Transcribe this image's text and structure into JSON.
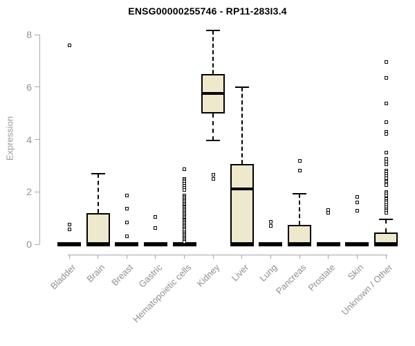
{
  "chart_data": {
    "type": "boxplot",
    "title": "ENSG00000255746 - RP11-283I3.4",
    "xlabel": "",
    "ylabel": "Expression",
    "ylim": [
      0,
      8
    ],
    "yticks": [
      0,
      2,
      4,
      6,
      8
    ],
    "grid": false,
    "legend": "none",
    "categories": [
      "Bladder",
      "Brain",
      "Breast",
      "Gastric",
      "Hematopoietic cells",
      "Kidney",
      "Liver",
      "Lung",
      "Pancreas",
      "Prostate",
      "Skin",
      "Unknown / Other"
    ],
    "boxes": [
      {
        "category": "Bladder",
        "whisker_low": 0,
        "q1": 0,
        "median": 0,
        "q3": 0,
        "whisker_high": 0,
        "outliers": [
          7.6,
          0.75,
          0.58
        ]
      },
      {
        "category": "Brain",
        "whisker_low": 0,
        "q1": 0,
        "median": 0.02,
        "q3": 1.2,
        "whisker_high": 2.7,
        "outliers": []
      },
      {
        "category": "Breast",
        "whisker_low": 0,
        "q1": 0,
        "median": 0,
        "q3": 0,
        "whisker_high": 0,
        "outliers": [
          1.85,
          1.37,
          0.84,
          0.3
        ]
      },
      {
        "category": "Gastric",
        "whisker_low": 0,
        "q1": 0,
        "median": 0,
        "q3": 0,
        "whisker_high": 0,
        "outliers": [
          1.05,
          0.63
        ]
      },
      {
        "category": "Hematopoietic cells",
        "whisker_low": 0,
        "q1": 0,
        "median": 0,
        "q3": 0,
        "whisker_high": 0,
        "outliers": [
          2.87,
          2.5,
          2.44,
          2.38,
          2.3,
          2.24,
          2.16,
          2.08,
          1.85,
          1.8,
          1.75,
          1.7,
          1.65,
          1.6,
          1.55,
          1.5,
          1.45,
          1.4,
          1.35,
          1.3,
          1.25,
          1.2,
          1.15,
          1.1,
          1.05,
          1.0,
          0.95,
          0.9,
          0.85,
          0.8,
          0.75,
          0.7,
          0.65,
          0.6,
          0.55,
          0.45,
          0.4,
          0.35,
          0.3,
          0.25,
          0.2,
          0.15,
          0.1
        ]
      },
      {
        "category": "Kidney",
        "whisker_low": 3.95,
        "q1": 5.0,
        "median": 5.75,
        "q3": 6.5,
        "whisker_high": 8.15,
        "outliers": [
          2.65,
          2.5
        ]
      },
      {
        "category": "Liver",
        "whisker_low": 0,
        "q1": 0,
        "median": 2.1,
        "q3": 3.05,
        "whisker_high": 6.0,
        "outliers": []
      },
      {
        "category": "Lung",
        "whisker_low": 0,
        "q1": 0,
        "median": 0,
        "q3": 0,
        "whisker_high": 0,
        "outliers": [
          0.85,
          0.7
        ]
      },
      {
        "category": "Pancreas",
        "whisker_low": 0,
        "q1": 0,
        "median": 0,
        "q3": 0.74,
        "whisker_high": 1.93,
        "outliers": [
          3.17,
          2.82
        ]
      },
      {
        "category": "Prostate",
        "whisker_low": 0,
        "q1": 0,
        "median": 0,
        "q3": 0,
        "whisker_high": 0,
        "outliers": [
          1.3,
          1.2
        ]
      },
      {
        "category": "Skin",
        "whisker_low": 0,
        "q1": 0,
        "median": 0,
        "q3": 0,
        "whisker_high": 0,
        "outliers": [
          1.82,
          1.61,
          1.27
        ]
      },
      {
        "category": "Unknown / Other",
        "whisker_low": 0,
        "q1": 0,
        "median": 0,
        "q3": 0.45,
        "whisker_high": 0.95,
        "outliers": [
          6.95,
          6.35,
          5.36,
          4.65,
          4.3,
          4.2,
          3.49,
          3.25,
          3.15,
          3.04,
          2.8,
          2.75,
          2.68,
          2.6,
          2.53,
          2.4,
          2.32,
          2.25,
          2.0,
          1.93,
          1.87,
          1.74,
          1.66,
          1.6,
          1.48,
          1.4,
          1.33,
          1.27,
          1.2
        ]
      }
    ],
    "colors": {
      "box_fill": "#eee8cd",
      "box_border": "#000000",
      "median": "#000000",
      "axis": "#a6a6a6",
      "tick_label": "#8f8f8f",
      "title": "#000000"
    }
  }
}
